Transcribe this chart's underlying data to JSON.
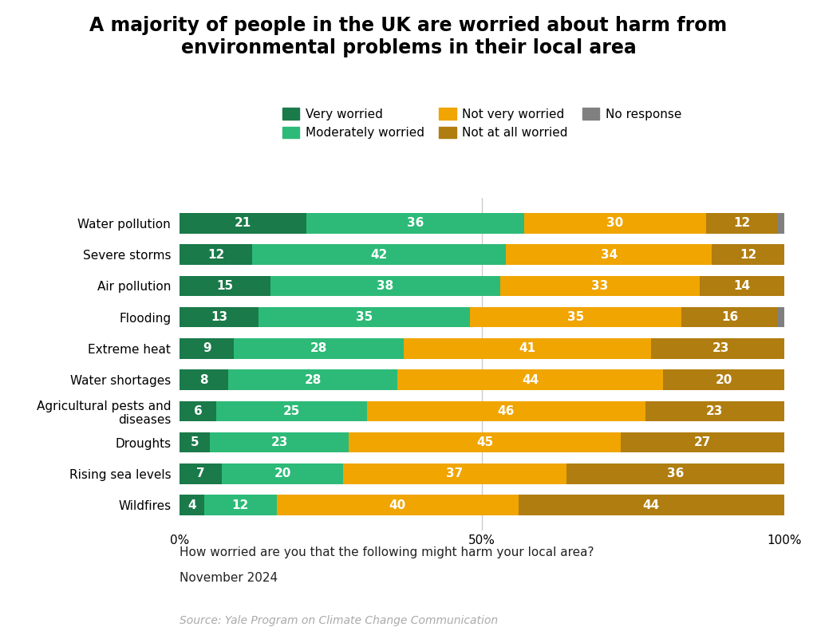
{
  "title": "A majority of people in the UK are worried about harm from\nenvironmental problems in their local area",
  "categories": [
    "Water pollution",
    "Severe storms",
    "Air pollution",
    "Flooding",
    "Extreme heat",
    "Water shortages",
    "Agricultural pests and\ndiseases",
    "Droughts",
    "Rising sea levels",
    "Wildfires"
  ],
  "series": {
    "Very worried": [
      21,
      12,
      15,
      13,
      9,
      8,
      6,
      5,
      7,
      4
    ],
    "Moderately worried": [
      36,
      42,
      38,
      35,
      28,
      28,
      25,
      23,
      20,
      12
    ],
    "Not very worried": [
      30,
      34,
      33,
      35,
      41,
      44,
      46,
      45,
      37,
      40
    ],
    "Not at all worried": [
      12,
      12,
      14,
      16,
      23,
      20,
      23,
      27,
      36,
      44
    ],
    "No response": [
      1,
      0,
      0,
      1,
      1,
      0,
      0,
      0,
      0,
      0
    ]
  },
  "colors": {
    "Very worried": "#1a7a4a",
    "Moderately worried": "#2dba78",
    "Not very worried": "#f0a500",
    "Not at all worried": "#b07d10",
    "No response": "#808080"
  },
  "legend_order": [
    "Very worried",
    "Moderately worried",
    "Not very worried",
    "Not at all worried",
    "No response"
  ],
  "question_text": "How worried are you that the following might harm your local area?",
  "date_text": "November 2024",
  "source_text": "Source: Yale Program on Climate Change Communication",
  "background_color": "#ffffff",
  "title_fontsize": 17,
  "label_fontsize": 11,
  "tick_fontsize": 11
}
